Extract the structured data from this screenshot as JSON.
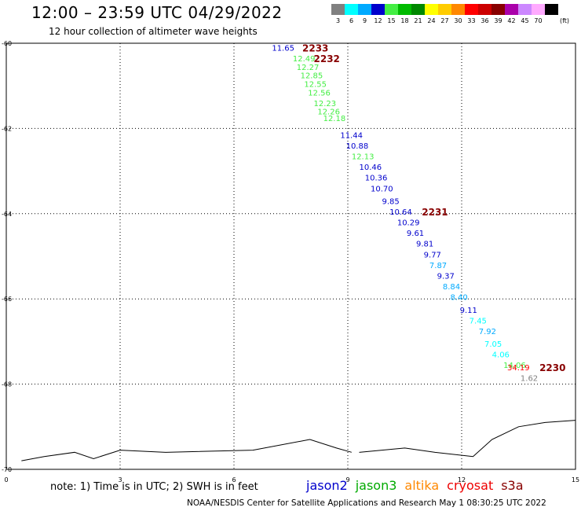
{
  "header": {
    "title": "12:00 – 23:59 UTC 04/29/2022",
    "subtitle": "12 hour collection of altimeter wave heights"
  },
  "color_legend": {
    "unit": "(ft)",
    "items": [
      {
        "label": "3",
        "color": "#808080"
      },
      {
        "label": "6",
        "color": "#00ffff"
      },
      {
        "label": "9",
        "color": "#00aaff"
      },
      {
        "label": "12",
        "color": "#0000cc"
      },
      {
        "label": "15",
        "color": "#44ee44"
      },
      {
        "label": "18",
        "color": "#00bb00"
      },
      {
        "label": "21",
        "color": "#008800"
      },
      {
        "label": "24",
        "color": "#ffff00"
      },
      {
        "label": "27",
        "color": "#ffcc00"
      },
      {
        "label": "30",
        "color": "#ff8800"
      },
      {
        "label": "33",
        "color": "#ff0000"
      },
      {
        "label": "36",
        "color": "#cc0000"
      },
      {
        "label": "39",
        "color": "#880000"
      },
      {
        "label": "42",
        "color": "#aa00aa"
      },
      {
        "label": "45",
        "color": "#cc88ff"
      },
      {
        "label": "70",
        "color": "#ffaaff"
      },
      {
        "label": "",
        "color": "#000000"
      }
    ]
  },
  "chart_data": {
    "type": "scatter",
    "title": "12:00 – 23:59 UTC 04/29/2022",
    "subtitle": "12 hour collection of altimeter wave heights",
    "xlim": [
      0,
      15
    ],
    "ylim": [
      -70,
      -60
    ],
    "x_ticks": [
      0,
      3,
      6,
      9,
      12,
      15
    ],
    "x_tick_labels": [
      "0",
      "3",
      "6",
      "9",
      "12",
      "15"
    ],
    "y_ticks": [
      -60,
      -62,
      -64,
      -66,
      -68,
      -70
    ],
    "y_tick_labels": [
      "-60",
      "-62",
      "-64",
      "-66",
      "-68",
      "-70"
    ],
    "grid": true,
    "points": [
      {
        "x": 7.0,
        "y": -60.1,
        "value": "11.65",
        "color": "#0000cc"
      },
      {
        "x": 7.55,
        "y": -60.35,
        "value": "12.49",
        "color": "#44ee44"
      },
      {
        "x": 7.65,
        "y": -60.55,
        "value": "12.27",
        "color": "#44ee44"
      },
      {
        "x": 7.75,
        "y": -60.75,
        "value": "12.85",
        "color": "#44ee44"
      },
      {
        "x": 7.85,
        "y": -60.95,
        "value": "12.55",
        "color": "#44ee44"
      },
      {
        "x": 7.95,
        "y": -61.15,
        "value": "12.56",
        "color": "#44ee44"
      },
      {
        "x": 8.1,
        "y": -61.4,
        "value": "12.23",
        "color": "#44ee44"
      },
      {
        "x": 8.2,
        "y": -61.6,
        "value": "12.26",
        "color": "#44ee44"
      },
      {
        "x": 8.35,
        "y": -61.75,
        "value": "12.18",
        "color": "#44ee44"
      },
      {
        "x": 8.8,
        "y": -62.15,
        "value": "11.44",
        "color": "#0000cc"
      },
      {
        "x": 8.95,
        "y": -62.4,
        "value": "10.88",
        "color": "#0000cc"
      },
      {
        "x": 9.1,
        "y": -62.65,
        "value": "12.13",
        "color": "#44ee44"
      },
      {
        "x": 9.3,
        "y": -62.9,
        "value": "10.46",
        "color": "#0000cc"
      },
      {
        "x": 9.45,
        "y": -63.15,
        "value": "10.36",
        "color": "#0000cc"
      },
      {
        "x": 9.6,
        "y": -63.4,
        "value": "10.70",
        "color": "#0000cc"
      },
      {
        "x": 9.9,
        "y": -63.7,
        "value": "9.85",
        "color": "#0000cc"
      },
      {
        "x": 10.1,
        "y": -63.95,
        "value": "10.64",
        "color": "#0000cc"
      },
      {
        "x": 10.3,
        "y": -64.2,
        "value": "10.29",
        "color": "#0000cc"
      },
      {
        "x": 10.55,
        "y": -64.45,
        "value": "9.61",
        "color": "#0000cc"
      },
      {
        "x": 10.8,
        "y": -64.7,
        "value": "9.81",
        "color": "#0000cc"
      },
      {
        "x": 11.0,
        "y": -64.95,
        "value": "9.77",
        "color": "#0000cc"
      },
      {
        "x": 11.15,
        "y": -65.2,
        "value": "7.87",
        "color": "#00aaff"
      },
      {
        "x": 11.35,
        "y": -65.45,
        "value": "9.37",
        "color": "#0000cc"
      },
      {
        "x": 11.5,
        "y": -65.7,
        "value": "8.84",
        "color": "#00aaff"
      },
      {
        "x": 11.7,
        "y": -65.95,
        "value": "8.40",
        "color": "#00aaff"
      },
      {
        "x": 11.95,
        "y": -66.25,
        "value": "9.11",
        "color": "#0000cc"
      },
      {
        "x": 12.2,
        "y": -66.5,
        "value": "7.45",
        "color": "#00ffff"
      },
      {
        "x": 12.45,
        "y": -66.75,
        "value": "7.92",
        "color": "#00aaff"
      },
      {
        "x": 12.6,
        "y": -67.05,
        "value": "7.05",
        "color": "#00ffff"
      },
      {
        "x": 12.8,
        "y": -67.3,
        "value": "4.06",
        "color": "#00ffff"
      },
      {
        "x": 13.1,
        "y": -67.55,
        "value": "14.06",
        "color": "#44ee44"
      },
      {
        "x": 13.2,
        "y": -67.6,
        "value": "34.19",
        "color": "#ff0000"
      },
      {
        "x": 13.55,
        "y": -67.85,
        "value": "1.62",
        "color": "#808080"
      }
    ],
    "time_labels": [
      {
        "x": 7.8,
        "y": -60.1,
        "label": "2233"
      },
      {
        "x": 8.1,
        "y": -60.35,
        "label": "2232"
      },
      {
        "x": 10.95,
        "y": -63.95,
        "label": "2231"
      },
      {
        "x": 14.05,
        "y": -67.6,
        "label": "2230"
      }
    ],
    "coastline": {
      "left": [
        [
          0.4,
          -69.8
        ],
        [
          1.0,
          -69.7
        ],
        [
          1.8,
          -69.6
        ],
        [
          2.3,
          -69.75
        ],
        [
          3.0,
          -69.55
        ],
        [
          4.2,
          -69.6
        ],
        [
          6.5,
          -69.55
        ],
        [
          8.0,
          -69.3
        ],
        [
          8.7,
          -69.5
        ],
        [
          9.1,
          -69.6
        ]
      ],
      "right": [
        [
          9.3,
          -69.6
        ],
        [
          10.5,
          -69.5
        ],
        [
          11.3,
          -69.6
        ],
        [
          12.3,
          -69.7
        ],
        [
          12.8,
          -69.3
        ],
        [
          13.5,
          -69.0
        ],
        [
          14.2,
          -68.9
        ],
        [
          15.0,
          -68.85
        ]
      ]
    }
  },
  "footer": {
    "note": "note:  1) Time is in UTC;  2) SWH is in feet",
    "credit": "NOAA/NESDIS Center for Satellite Applications and Research     May  1 08:30:25 UTC 2022"
  },
  "satellites": [
    {
      "label": "jason2",
      "color": "#0000cc"
    },
    {
      "label": "jason3",
      "color": "#00aa00"
    },
    {
      "label": "altika",
      "color": "#ff8800"
    },
    {
      "label": "cryosat",
      "color": "#ee0000"
    },
    {
      "label": "s3a",
      "color": "#880000"
    }
  ]
}
